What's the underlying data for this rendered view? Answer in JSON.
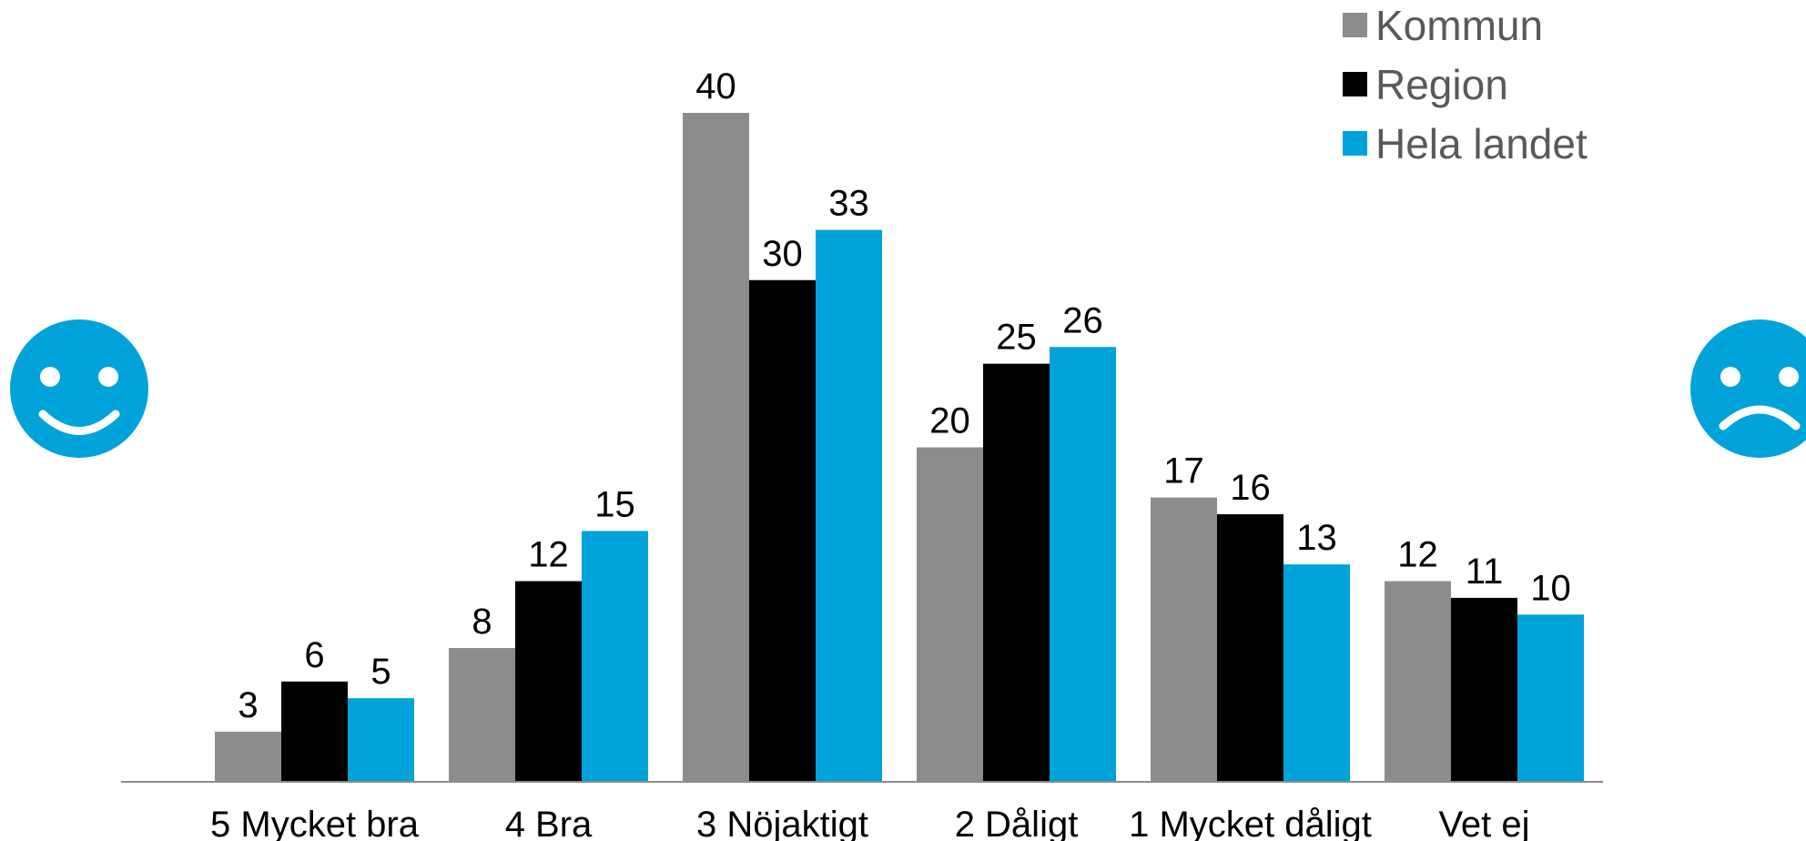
{
  "chart_data": {
    "type": "bar",
    "categories": [
      "5 Mycket bra",
      "4 Bra",
      "3 Nöjaktigt",
      "2 Dåligt",
      "1 Mycket dåligt",
      "Vet ej"
    ],
    "series": [
      {
        "name": "Kommun",
        "color": "#8c8c8c",
        "values": [
          3,
          8,
          40,
          20,
          17,
          12
        ]
      },
      {
        "name": "Region",
        "color": "#000000",
        "values": [
          6,
          12,
          30,
          25,
          16,
          11
        ]
      },
      {
        "name": "Hela landet",
        "color": "#00a3d9",
        "values": [
          5,
          15,
          33,
          26,
          13,
          10
        ]
      }
    ],
    "ylim": [
      0,
      40
    ],
    "grid": false,
    "data_labels": true,
    "legend_position": "top-right"
  },
  "decorations": {
    "left_icon": "happy-face-icon",
    "right_icon": "sad-face-icon",
    "icon_color": "#00a3d9"
  }
}
